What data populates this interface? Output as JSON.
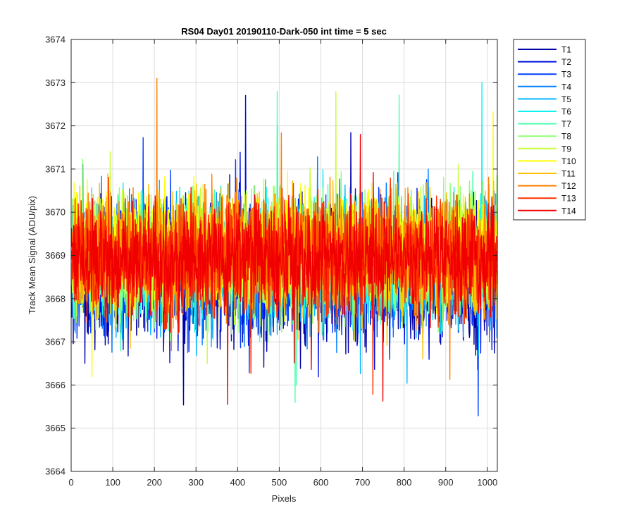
{
  "chart_data": {
    "type": "line",
    "title": "RS04 Day01 20190110-Dark-050 int time = 5 sec",
    "xlabel": "Pixels",
    "ylabel": "Track Mean Signal (ADU/pix)",
    "xlim": [
      0,
      1024
    ],
    "ylim": [
      3664,
      3674
    ],
    "x_ticks": [
      "0",
      "100",
      "200",
      "300",
      "400",
      "500",
      "600",
      "700",
      "800",
      "900",
      "1000"
    ],
    "y_ticks": [
      "3664",
      "3665",
      "3666",
      "3667",
      "3668",
      "3669",
      "3670",
      "3671",
      "3672",
      "3673",
      "3674"
    ],
    "grid": true,
    "legend_position": "outside-top-right",
    "x": {
      "start": 1,
      "end": 1024,
      "step": 1
    },
    "series": [
      {
        "name": "T1",
        "color": "#0000a8",
        "mean": 3668.5,
        "noise": 1.1,
        "seed": 11
      },
      {
        "name": "T2",
        "color": "#0010e0",
        "mean": 3668.6,
        "noise": 1.05,
        "seed": 23
      },
      {
        "name": "T3",
        "color": "#0040ff",
        "mean": 3668.7,
        "noise": 1.0,
        "seed": 37
      },
      {
        "name": "T4",
        "color": "#0080ff",
        "mean": 3668.8,
        "noise": 1.0,
        "seed": 41
      },
      {
        "name": "T5",
        "color": "#00b8ff",
        "mean": 3668.85,
        "noise": 0.95,
        "seed": 53
      },
      {
        "name": "T6",
        "color": "#10f0f0",
        "mean": 3668.9,
        "noise": 0.95,
        "seed": 67
      },
      {
        "name": "T7",
        "color": "#50ffb0",
        "mean": 3668.95,
        "noise": 0.95,
        "seed": 71
      },
      {
        "name": "T8",
        "color": "#90ff70",
        "mean": 3669.0,
        "noise": 0.95,
        "seed": 83
      },
      {
        "name": "T9",
        "color": "#c8ff38",
        "mean": 3669.05,
        "noise": 0.95,
        "seed": 97
      },
      {
        "name": "T10",
        "color": "#ffff00",
        "mean": 3669.1,
        "noise": 0.95,
        "seed": 101
      },
      {
        "name": "T11",
        "color": "#ffc000",
        "mean": 3669.05,
        "noise": 0.95,
        "seed": 113
      },
      {
        "name": "T12",
        "color": "#ff8000",
        "mean": 3669.0,
        "noise": 0.95,
        "seed": 127
      },
      {
        "name": "T13",
        "color": "#ff3000",
        "mean": 3668.95,
        "noise": 0.9,
        "seed": 131
      },
      {
        "name": "T14",
        "color": "#f00000",
        "mean": 3668.95,
        "noise": 0.85,
        "seed": 139
      }
    ]
  }
}
